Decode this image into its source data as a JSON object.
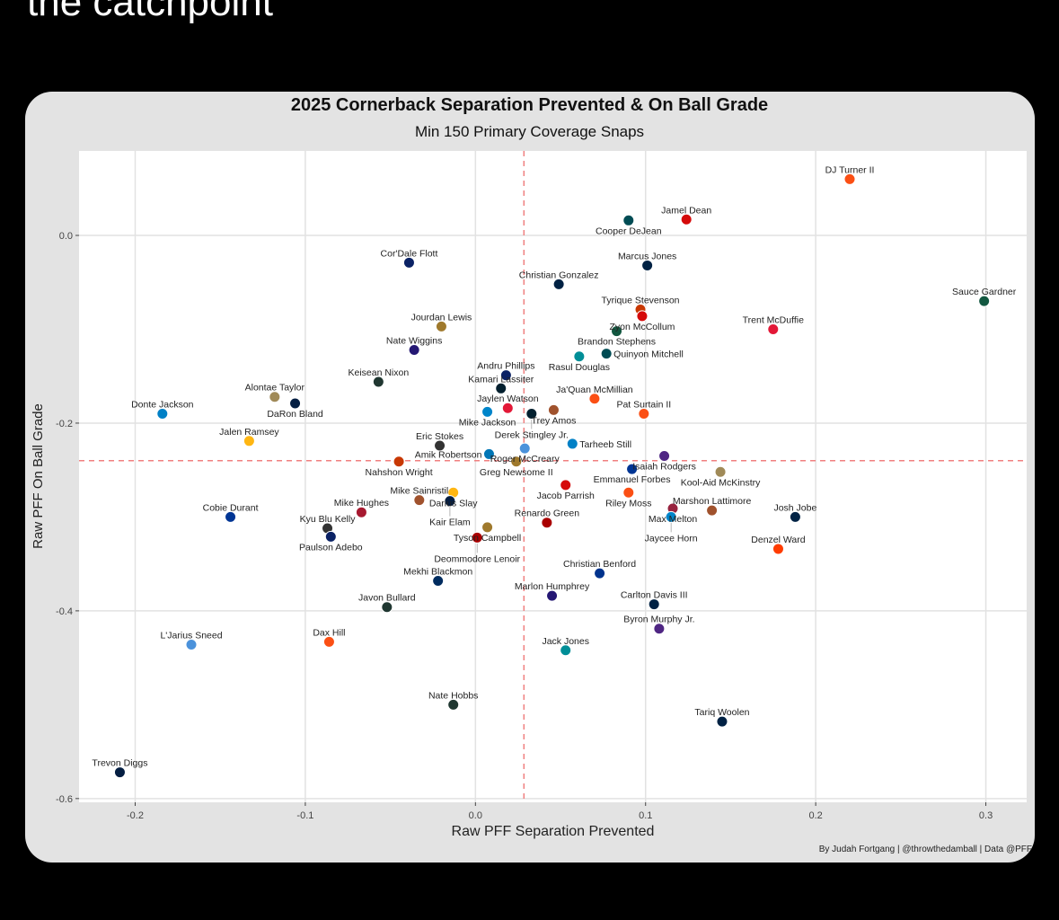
{
  "brand_text": "the catchpoint",
  "chart_data": {
    "type": "scatter",
    "title": "2025 Cornerback Separation Prevented & On Ball Grade",
    "subtitle": "Min 150 Primary Coverage Snaps",
    "xlabel": "Raw PFF Separation Prevented",
    "ylabel": "Raw PFF On Ball Grade",
    "xlim": [
      -0.233,
      0.324
    ],
    "ylim": [
      -0.604,
      0.09
    ],
    "x_ticks": [
      -0.2,
      -0.1,
      0.0,
      0.1,
      0.2,
      0.3
    ],
    "x_tick_labels": [
      "-0.2",
      "-0.1",
      "0.0",
      "0.1",
      "0.2",
      "0.3"
    ],
    "y_ticks": [
      0.0,
      -0.2,
      -0.4,
      -0.6
    ],
    "y_tick_labels": [
      "0.0",
      "-0.2",
      "-0.4",
      "-0.6"
    ],
    "grid": true,
    "reference_lines": {
      "x": 0.0285,
      "y": -0.24,
      "color": "#f08080",
      "style": "dashed"
    },
    "credit": "By Judah Fortgang | @throwthedamball | Data @PFF",
    "points": [
      {
        "name": "DJ Turner II",
        "x": 0.22,
        "y": 0.06,
        "logo": "bengals"
      },
      {
        "name": "Jamel Dean",
        "x": 0.124,
        "y": 0.017,
        "logo": "buccaneers"
      },
      {
        "name": "Cooper DeJean",
        "x": 0.09,
        "y": 0.016,
        "logo": "eagles"
      },
      {
        "name": "Cor'Dale Flott",
        "x": -0.039,
        "y": -0.029,
        "logo": "giants"
      },
      {
        "name": "Marcus Jones",
        "x": 0.101,
        "y": -0.032,
        "logo": "patriots"
      },
      {
        "name": "Christian Gonzalez",
        "x": 0.049,
        "y": -0.052,
        "logo": "patriots"
      },
      {
        "name": "Sauce Gardner",
        "x": 0.299,
        "y": -0.07,
        "logo": "jets"
      },
      {
        "name": "Tyrique Stevenson",
        "x": 0.097,
        "y": -0.079,
        "logo": "bears"
      },
      {
        "name": "Zyon McCollum",
        "x": 0.098,
        "y": -0.086,
        "logo": "buccaneers"
      },
      {
        "name": "Brandon Stephens",
        "x": 0.083,
        "y": -0.102,
        "logo": "jets"
      },
      {
        "name": "Jourdan Lewis",
        "x": -0.02,
        "y": -0.097,
        "logo": "jaguars"
      },
      {
        "name": "Trent McDuffie",
        "x": 0.175,
        "y": -0.1,
        "logo": "chiefs"
      },
      {
        "name": "Nate Wiggins",
        "x": -0.036,
        "y": -0.122,
        "logo": "ravens"
      },
      {
        "name": "Rasul Douglas",
        "x": 0.061,
        "y": -0.129,
        "logo": "dolphins"
      },
      {
        "name": "Quinyon Mitchell",
        "x": 0.077,
        "y": -0.126,
        "logo": "eagles"
      },
      {
        "name": "Andru Phillips",
        "x": 0.018,
        "y": -0.149,
        "logo": "giants"
      },
      {
        "name": "Kamari Lassiter",
        "x": 0.015,
        "y": -0.163,
        "logo": "texans"
      },
      {
        "name": "Keisean Nixon",
        "x": -0.057,
        "y": -0.156,
        "logo": "packers"
      },
      {
        "name": "Alontae Taylor",
        "x": -0.118,
        "y": -0.172,
        "logo": "saints"
      },
      {
        "name": "DaRon Bland",
        "x": -0.106,
        "y": -0.179,
        "logo": "cowboys"
      },
      {
        "name": "Donte Jackson",
        "x": -0.184,
        "y": -0.19,
        "logo": "chargers"
      },
      {
        "name": "Ja'Quan McMillian",
        "x": 0.07,
        "y": -0.174,
        "logo": "broncos"
      },
      {
        "name": "Jaylen Watson",
        "x": 0.019,
        "y": -0.184,
        "logo": "chiefs"
      },
      {
        "name": "Trey Amos",
        "x": 0.046,
        "y": -0.186,
        "logo": "commanders"
      },
      {
        "name": "Mike Jackson",
        "x": 0.007,
        "y": -0.188,
        "logo": "panthers"
      },
      {
        "name": "Derek Stingley Jr.",
        "x": 0.033,
        "y": -0.19,
        "logo": "texans"
      },
      {
        "name": "Pat Surtain II",
        "x": 0.099,
        "y": -0.19,
        "logo": "broncos"
      },
      {
        "name": "Jalen Ramsey",
        "x": -0.133,
        "y": -0.219,
        "logo": "steelers"
      },
      {
        "name": "Eric Stokes",
        "x": -0.021,
        "y": -0.224,
        "logo": "raiders"
      },
      {
        "name": "Roger McCreary",
        "x": 0.029,
        "y": -0.227,
        "logo": "titans"
      },
      {
        "name": "Tarheeb Still",
        "x": 0.057,
        "y": -0.222,
        "logo": "chargers"
      },
      {
        "name": "Isaiah Rodgers",
        "x": 0.111,
        "y": -0.235,
        "logo": "vikings"
      },
      {
        "name": "Amik Robertson",
        "x": 0.008,
        "y": -0.233,
        "logo": "lions"
      },
      {
        "name": "Nahshon Wright",
        "x": -0.045,
        "y": -0.241,
        "logo": "bears"
      },
      {
        "name": "Greg Newsome II",
        "x": 0.024,
        "y": -0.241,
        "logo": "jaguars"
      },
      {
        "name": "Emmanuel Forbes",
        "x": 0.092,
        "y": -0.249,
        "logo": "rams"
      },
      {
        "name": "Kool-Aid McKinstry",
        "x": 0.144,
        "y": -0.252,
        "logo": "saints"
      },
      {
        "name": "Darius Slay",
        "x": -0.013,
        "y": -0.274,
        "logo": "steelers"
      },
      {
        "name": "Kair Elam",
        "x": -0.015,
        "y": -0.283,
        "logo": "cowboys"
      },
      {
        "name": "Jacob Parrish",
        "x": 0.053,
        "y": -0.266,
        "logo": "buccaneers"
      },
      {
        "name": "Riley Moss",
        "x": 0.09,
        "y": -0.274,
        "logo": "broncos"
      },
      {
        "name": "Mike Sainristil",
        "x": -0.033,
        "y": -0.282,
        "logo": "commanders"
      },
      {
        "name": "Max Melton",
        "x": 0.116,
        "y": -0.291,
        "logo": "cardinals"
      },
      {
        "name": "Jaycee Horn",
        "x": 0.115,
        "y": -0.3,
        "logo": "panthers"
      },
      {
        "name": "Marshon Lattimore",
        "x": 0.139,
        "y": -0.293,
        "logo": "commanders"
      },
      {
        "name": "Josh Jobe",
        "x": 0.188,
        "y": -0.3,
        "logo": "seahawks"
      },
      {
        "name": "Cobie Durant",
        "x": -0.144,
        "y": -0.3,
        "logo": "rams"
      },
      {
        "name": "Kyu Blu Kelly",
        "x": -0.087,
        "y": -0.312,
        "logo": "raiders"
      },
      {
        "name": "Mike Hughes",
        "x": -0.067,
        "y": -0.295,
        "logo": "falcons"
      },
      {
        "name": "Paulson Adebo",
        "x": -0.085,
        "y": -0.321,
        "logo": "giants"
      },
      {
        "name": "Renardo Green",
        "x": 0.042,
        "y": -0.306,
        "logo": "49ers"
      },
      {
        "name": "Tyson Campbell",
        "x": 0.007,
        "y": -0.311,
        "logo": "jaguars"
      },
      {
        "name": "Deommodore Lenoir",
        "x": 0.001,
        "y": -0.322,
        "logo": "49ers"
      },
      {
        "name": "Denzel Ward",
        "x": 0.178,
        "y": -0.334,
        "logo": "browns"
      },
      {
        "name": "Christian Benford",
        "x": 0.073,
        "y": -0.36,
        "logo": "bills"
      },
      {
        "name": "Mekhi Blackmon",
        "x": -0.022,
        "y": -0.368,
        "logo": "colts"
      },
      {
        "name": "Marlon Humphrey",
        "x": 0.045,
        "y": -0.384,
        "logo": "ravens"
      },
      {
        "name": "Carlton Davis III",
        "x": 0.105,
        "y": -0.393,
        "logo": "patriots"
      },
      {
        "name": "Javon Bullard",
        "x": -0.052,
        "y": -0.396,
        "logo": "packers"
      },
      {
        "name": "Byron Murphy Jr.",
        "x": 0.108,
        "y": -0.419,
        "logo": "vikings"
      },
      {
        "name": "L'Jarius Sneed",
        "x": -0.167,
        "y": -0.436,
        "logo": "titans"
      },
      {
        "name": "Dax Hill",
        "x": -0.086,
        "y": -0.433,
        "logo": "bengals"
      },
      {
        "name": "Jack Jones",
        "x": 0.053,
        "y": -0.442,
        "logo": "dolphins"
      },
      {
        "name": "Nate Hobbs",
        "x": -0.013,
        "y": -0.5,
        "logo": "packers"
      },
      {
        "name": "Tariq Woolen",
        "x": 0.145,
        "y": -0.518,
        "logo": "seahawks"
      },
      {
        "name": "Trevon Diggs",
        "x": -0.209,
        "y": -0.572,
        "logo": "cowboys"
      }
    ]
  }
}
